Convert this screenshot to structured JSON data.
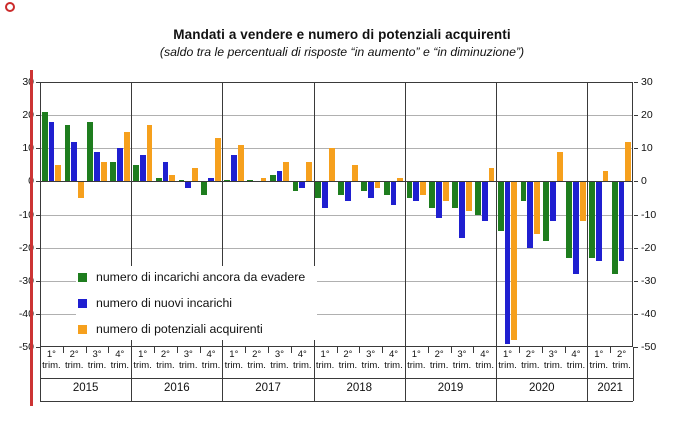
{
  "chart_data": {
    "type": "bar",
    "title": "Mandati a vendere e numero di potenziali acquirenti",
    "subtitle": "(saldo tra le percentuali di risposte “in aumento” e “in diminuzione”)",
    "ylim": [
      -50,
      30
    ],
    "yticks": [
      30,
      20,
      10,
      0,
      -10,
      -20,
      -30,
      -40,
      -50
    ],
    "grid": true,
    "legend_position": "inside-bottom-left",
    "quarter_suffix": "trim.",
    "years": [
      {
        "label": "2015",
        "quarters": [
          "1°",
          "2°",
          "3°",
          "4°"
        ]
      },
      {
        "label": "2016",
        "quarters": [
          "1°",
          "2°",
          "3°",
          "4°"
        ]
      },
      {
        "label": "2017",
        "quarters": [
          "1°",
          "2°",
          "3°",
          "4°"
        ]
      },
      {
        "label": "2018",
        "quarters": [
          "1°",
          "2°",
          "3°",
          "4°"
        ]
      },
      {
        "label": "2019",
        "quarters": [
          "1°",
          "2°",
          "3°",
          "4°"
        ]
      },
      {
        "label": "2020",
        "quarters": [
          "1°",
          "2°",
          "3°",
          "4°"
        ]
      },
      {
        "label": "2021",
        "quarters": [
          "1°",
          "2°"
        ]
      }
    ],
    "series": [
      {
        "name": "numero di incarichi ancora da evadere",
        "color": "#1e7d1e",
        "values": [
          21,
          17,
          18,
          6,
          5,
          1,
          0.5,
          -4,
          0.5,
          0.5,
          2,
          -3,
          -5,
          -4,
          -3,
          -4,
          -5,
          -8,
          -8,
          -10,
          -15,
          -6,
          -18,
          -23,
          -23,
          -28
        ]
      },
      {
        "name": "numero di nuovi incarichi",
        "color": "#1f1fd0",
        "values": [
          18,
          12,
          9,
          10,
          8,
          6,
          -2,
          1,
          8,
          0,
          3,
          -2,
          -8,
          -6,
          -5,
          -7,
          -6,
          -11,
          -17,
          -12,
          -49,
          -20,
          -12,
          -28,
          -24,
          -24
        ]
      },
      {
        "name": "numero di potenziali acquirenti",
        "color": "#f6a01d",
        "values": [
          5,
          -5,
          6,
          15,
          17,
          2,
          4,
          13,
          11,
          1,
          6,
          6,
          10,
          5,
          -2,
          1,
          -4,
          -6,
          -9,
          4,
          -48,
          -16,
          9,
          -12,
          3,
          12
        ]
      }
    ],
    "colors": {
      "grid": "#b0b0b0",
      "axis": "#3a3a3a",
      "zero_line": "#3a3a3a",
      "red_artifact": "#cc3434"
    }
  }
}
